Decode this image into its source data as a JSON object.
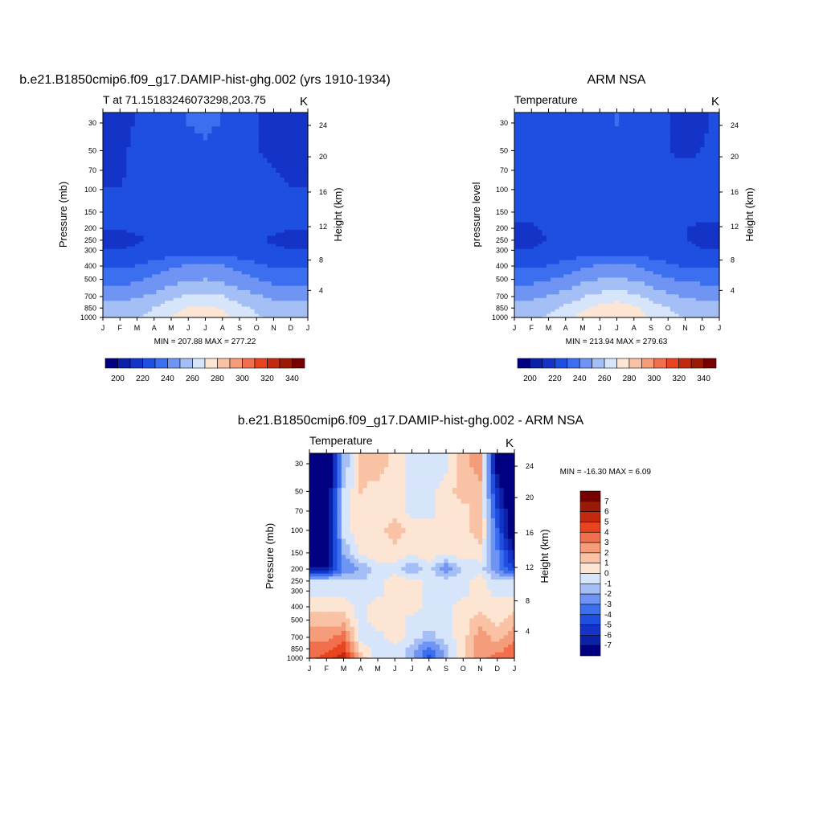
{
  "chart_data": [
    {
      "type": "heatmap",
      "title": "b.e21.B1850cmip6.f09_g17.DAMIP-hist-ghg.002 (yrs 1910-1934)",
      "left_label": "T at 71.15183246073298,203.75",
      "units": "K",
      "ylabel": "Pressure (mb)",
      "y2label": "Height (km)",
      "months": [
        "J",
        "F",
        "M",
        "A",
        "M",
        "J",
        "J",
        "A",
        "S",
        "O",
        "N",
        "D",
        "J"
      ],
      "pressure_ticks": [
        "30",
        "50",
        "70",
        "100",
        "150",
        "200",
        "250",
        "300",
        "400",
        "500",
        "700",
        "850",
        "1000"
      ],
      "height_ticks": [
        "24",
        "20",
        "16",
        "12",
        "8",
        "4"
      ],
      "stats": "MIN = 207.88 MAX = 277.22",
      "colorbar_labels": [
        "200",
        "220",
        "240",
        "260",
        "280",
        "300",
        "320",
        "340"
      ],
      "colorbar_levels": [
        200,
        210,
        220,
        230,
        240,
        250,
        260,
        270,
        280,
        290,
        300,
        310,
        320,
        330,
        340
      ],
      "colors": [
        "#000080",
        "#0a21a8",
        "#1434c8",
        "#1e4fe0",
        "#3c6ef0",
        "#6f94f3",
        "#a4bff5",
        "#d7e5fb",
        "#fde5d4",
        "#f9c2a5",
        "#f59c7a",
        "#f26f4d",
        "#e8441f",
        "#c22a10",
        "#9a1a06",
        "#760000"
      ],
      "values": [
        [
          219,
          219,
          220,
          222,
          226,
          230,
          234,
          229,
          224,
          220,
          218,
          216,
          219
        ],
        [
          217,
          218,
          222,
          224,
          226,
          226,
          226,
          224,
          222,
          220,
          219,
          217,
          217
        ],
        [
          219,
          219,
          222,
          223,
          224,
          224,
          224,
          223,
          222,
          221,
          220,
          219,
          219
        ],
        [
          220,
          220,
          222,
          222,
          223,
          223,
          223,
          223,
          222,
          222,
          221,
          220,
          220
        ],
        [
          222,
          222,
          222,
          222,
          222,
          222,
          222,
          222,
          222,
          222,
          222,
          222,
          222
        ],
        [
          220,
          220,
          221,
          222,
          222,
          222,
          222,
          222,
          222,
          221,
          221,
          220,
          220
        ],
        [
          219,
          219,
          219,
          221,
          222,
          222,
          222,
          222,
          222,
          221,
          219,
          219,
          219
        ],
        [
          220,
          220,
          221,
          223,
          224,
          225,
          225,
          224,
          223,
          222,
          221,
          220,
          220
        ],
        [
          228,
          228,
          230,
          234,
          238,
          241,
          242,
          240,
          236,
          232,
          229,
          228,
          228
        ],
        [
          236,
          236,
          238,
          242,
          246,
          249,
          250,
          248,
          244,
          240,
          237,
          236,
          236
        ],
        [
          247,
          247,
          249,
          252,
          257,
          261,
          263,
          260,
          255,
          251,
          248,
          247,
          247
        ],
        [
          253,
          253,
          256,
          260,
          266,
          270,
          272,
          269,
          263,
          258,
          254,
          253,
          253
        ],
        [
          256,
          256,
          259,
          264,
          271,
          275,
          277,
          274,
          267,
          261,
          257,
          256,
          256
        ]
      ]
    },
    {
      "type": "heatmap",
      "title": "ARM NSA",
      "left_label": "Temperature",
      "units": "K",
      "ylabel": "pressure level",
      "y2label": "Height (km)",
      "months": [
        "J",
        "F",
        "M",
        "A",
        "M",
        "J",
        "J",
        "A",
        "S",
        "O",
        "N",
        "D",
        "J"
      ],
      "pressure_ticks": [
        "30",
        "50",
        "70",
        "100",
        "150",
        "200",
        "250",
        "300",
        "400",
        "500",
        "700",
        "850",
        "1000"
      ],
      "height_ticks": [
        "24",
        "20",
        "16",
        "12",
        "8",
        "4"
      ],
      "stats": "MIN = 213.94 MAX = 279.63",
      "colorbar_labels": [
        "200",
        "220",
        "240",
        "260",
        "280",
        "300",
        "320",
        "340"
      ],
      "colorbar_levels": [
        200,
        210,
        220,
        230,
        240,
        250,
        260,
        270,
        280,
        290,
        300,
        310,
        320,
        330,
        340
      ],
      "colors": [
        "#000080",
        "#0a21a8",
        "#1434c8",
        "#1e4fe0",
        "#3c6ef0",
        "#6f94f3",
        "#a4bff5",
        "#d7e5fb",
        "#fde5d4",
        "#f9c2a5",
        "#f59c7a",
        "#f26f4d",
        "#e8441f",
        "#c22a10",
        "#9a1a06",
        "#760000"
      ],
      "values": [
        [
          224,
          224,
          224,
          224,
          225,
          226,
          231,
          226,
          222,
          220,
          219,
          218,
          224
        ],
        [
          223,
          223,
          223,
          224,
          224,
          224,
          224,
          223,
          221,
          220,
          219,
          220,
          223
        ],
        [
          223,
          223,
          223,
          224,
          224,
          224,
          224,
          223,
          222,
          221,
          221,
          221,
          223
        ],
        [
          223,
          223,
          223,
          223,
          224,
          224,
          224,
          223,
          222,
          221,
          221,
          222,
          223
        ],
        [
          222,
          222,
          223,
          223,
          224,
          224,
          224,
          223,
          222,
          222,
          222,
          222,
          222
        ],
        [
          219,
          219,
          221,
          222,
          223,
          223,
          223,
          223,
          222,
          221,
          220,
          219,
          219
        ],
        [
          219,
          219,
          220,
          221,
          222,
          222,
          222,
          222,
          222,
          221,
          220,
          219,
          219
        ],
        [
          220,
          220,
          221,
          223,
          224,
          225,
          225,
          224,
          223,
          222,
          221,
          220,
          220
        ],
        [
          228,
          228,
          230,
          234,
          238,
          241,
          242,
          240,
          236,
          232,
          229,
          228,
          228
        ],
        [
          237,
          237,
          239,
          243,
          247,
          250,
          251,
          249,
          245,
          241,
          238,
          237,
          237
        ],
        [
          248,
          248,
          250,
          254,
          259,
          263,
          265,
          262,
          257,
          252,
          249,
          248,
          248
        ],
        [
          254,
          254,
          257,
          262,
          268,
          273,
          275,
          272,
          265,
          260,
          256,
          254,
          254
        ],
        [
          258,
          258,
          261,
          266,
          273,
          277,
          279,
          276,
          269,
          263,
          259,
          258,
          258
        ]
      ]
    },
    {
      "type": "heatmap",
      "title": "b.e21.B1850cmip6.f09_g17.DAMIP-hist-ghg.002 - ARM NSA",
      "left_label": "Temperature",
      "units": "K",
      "ylabel": "Pressure (mb)",
      "y2label": "Height (km)",
      "months": [
        "J",
        "F",
        "M",
        "A",
        "M",
        "J",
        "J",
        "A",
        "S",
        "O",
        "N",
        "D",
        "J"
      ],
      "pressure_ticks": [
        "30",
        "50",
        "70",
        "100",
        "150",
        "200",
        "250",
        "300",
        "400",
        "500",
        "700",
        "850",
        "1000"
      ],
      "height_ticks": [
        "24",
        "20",
        "16",
        "12",
        "8",
        "4"
      ],
      "stats": "MIN = -16.30 MAX =   6.09",
      "colorbar_labels": [
        "7",
        "6",
        "5",
        "4",
        "3",
        "2",
        "1",
        "0",
        "-1",
        "-2",
        "-3",
        "-4",
        "-5",
        "-6",
        "-7"
      ],
      "colorbar_levels": [
        -7,
        -6,
        -5,
        -4,
        -3,
        -2,
        -1,
        0,
        1,
        2,
        3,
        4,
        5,
        6,
        7
      ],
      "colors": [
        "#000080",
        "#0a21a8",
        "#1434c8",
        "#1e4fe0",
        "#3c6ef0",
        "#6f94f3",
        "#a4bff5",
        "#d7e5fb",
        "#fde5d4",
        "#f9c2a5",
        "#f59c7a",
        "#f26f4d",
        "#e8441f",
        "#c22a10",
        "#9a1a06",
        "#760000"
      ],
      "values": [
        [
          -9,
          -9,
          -2,
          1.5,
          1.5,
          0.5,
          -0.5,
          -0.5,
          -0.5,
          1.5,
          2.5,
          -8,
          -9
        ],
        [
          -9,
          -9,
          -1,
          1,
          0.5,
          0.5,
          -0.5,
          -0.5,
          0.5,
          1.5,
          1.5,
          -6,
          -9
        ],
        [
          -9,
          -9,
          -0.5,
          0.5,
          0.5,
          0.5,
          -0.5,
          -0.5,
          0.5,
          0.5,
          1.5,
          -5,
          -9
        ],
        [
          -9,
          -9,
          -0.5,
          0.5,
          0.5,
          1.5,
          0.5,
          0.5,
          0.5,
          0.5,
          1.5,
          -4,
          -9
        ],
        [
          -8,
          -8,
          -2,
          0.5,
          0.5,
          0.5,
          0.5,
          0.5,
          0.5,
          0.5,
          0.5,
          -3,
          -7
        ],
        [
          -7,
          -7,
          -3,
          -2,
          -0.5,
          -0.5,
          -2,
          -0.5,
          -3,
          -1,
          -0.5,
          -3,
          -5
        ],
        [
          -1,
          -0.5,
          -1,
          -1,
          -0.5,
          0.5,
          0.5,
          -0.5,
          -0.5,
          -0.5,
          0.5,
          -1,
          -1
        ],
        [
          -0.5,
          -0.5,
          -0.5,
          -1,
          -0.5,
          0.5,
          0.5,
          -0.5,
          -0.5,
          -0.5,
          0.5,
          -0.5,
          -0.5
        ],
        [
          0.5,
          0.5,
          0.5,
          -0.5,
          0.5,
          0.5,
          0.5,
          -0.5,
          -0.5,
          0.5,
          0.5,
          0.5,
          0.5
        ],
        [
          1.5,
          1.5,
          1.5,
          -0.5,
          0.5,
          0.5,
          -0.5,
          -0.5,
          -0.5,
          0.5,
          1.5,
          0.5,
          1.5
        ],
        [
          2.5,
          2.5,
          3.5,
          -0.5,
          -0.5,
          0.5,
          -0.5,
          -1.5,
          -0.5,
          0.5,
          2.5,
          1.5,
          2.5
        ],
        [
          3.5,
          3.5,
          4.5,
          0.5,
          -0.5,
          -0.5,
          -1.5,
          -3.5,
          -1.5,
          0.5,
          2.5,
          2.5,
          3.5
        ],
        [
          3.5,
          4.5,
          5.5,
          1.5,
          -0.5,
          -0.5,
          -1.5,
          -4.5,
          -1.5,
          0.5,
          2.5,
          3.5,
          3.5
        ]
      ]
    }
  ]
}
